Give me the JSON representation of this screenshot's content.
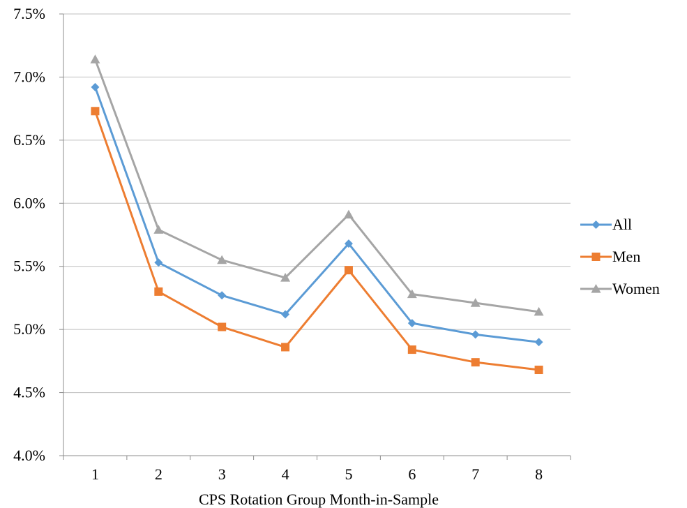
{
  "chart_data": {
    "type": "line",
    "title": "",
    "xlabel": "CPS Rotation Group Month-in-Sample",
    "ylabel": "",
    "categories": [
      "1",
      "2",
      "3",
      "4",
      "5",
      "6",
      "7",
      "8"
    ],
    "ylim": [
      4.0,
      7.5
    ],
    "yticks": [
      4.0,
      4.5,
      5.0,
      5.5,
      6.0,
      6.5,
      7.0,
      7.5
    ],
    "ytick_labels": [
      "4.0%",
      "4.5%",
      "5.0%",
      "5.5%",
      "6.0%",
      "6.5%",
      "7.0%",
      "7.5%"
    ],
    "grid": "horizontal",
    "legend": "right",
    "series": [
      {
        "name": "All",
        "color": "#5B9BD5",
        "marker": "diamond",
        "values": [
          6.92,
          5.53,
          5.27,
          5.12,
          5.68,
          5.05,
          4.96,
          4.9
        ]
      },
      {
        "name": "Men",
        "color": "#ED7D31",
        "marker": "square",
        "values": [
          6.73,
          5.3,
          5.02,
          4.86,
          5.47,
          4.84,
          4.74,
          4.68
        ]
      },
      {
        "name": "Women",
        "color": "#A5A5A5",
        "marker": "triangle",
        "values": [
          7.14,
          5.79,
          5.55,
          5.41,
          5.91,
          5.28,
          5.21,
          5.14
        ]
      }
    ]
  }
}
